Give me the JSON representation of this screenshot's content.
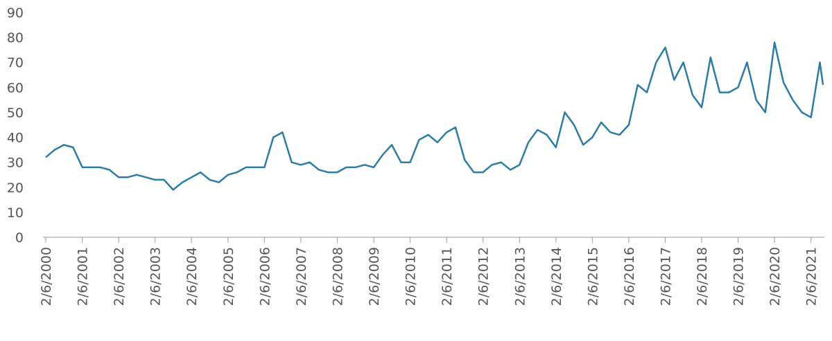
{
  "chart_data": {
    "type": "line",
    "x": [
      "2/6/2000",
      "5/6/2000",
      "8/6/2000",
      "11/6/2000",
      "2/6/2001",
      "5/6/2001",
      "8/6/2001",
      "11/6/2001",
      "2/6/2002",
      "5/6/2002",
      "8/6/2002",
      "11/6/2002",
      "2/6/2003",
      "5/6/2003",
      "8/6/2003",
      "11/6/2003",
      "2/6/2004",
      "5/6/2004",
      "8/6/2004",
      "11/6/2004",
      "2/6/2005",
      "5/6/2005",
      "8/6/2005",
      "11/6/2005",
      "2/6/2006",
      "5/6/2006",
      "8/6/2006",
      "11/6/2006",
      "2/6/2007",
      "5/6/2007",
      "8/6/2007",
      "11/6/2007",
      "2/6/2008",
      "5/6/2008",
      "8/6/2008",
      "11/6/2008",
      "2/6/2009",
      "5/6/2009",
      "8/6/2009",
      "11/6/2009",
      "2/6/2010",
      "5/6/2010",
      "8/6/2010",
      "11/6/2010",
      "2/6/2011",
      "5/6/2011",
      "8/6/2011",
      "11/6/2011",
      "2/6/2012",
      "5/6/2012",
      "8/6/2012",
      "11/6/2012",
      "2/6/2013",
      "5/6/2013",
      "8/6/2013",
      "11/6/2013",
      "2/6/2014",
      "5/6/2014",
      "8/6/2014",
      "11/6/2014",
      "2/6/2015",
      "5/6/2015",
      "8/6/2015",
      "11/6/2015",
      "2/6/2016",
      "5/6/2016",
      "8/6/2016",
      "11/6/2016",
      "2/6/2017",
      "5/6/2017",
      "8/6/2017",
      "11/6/2017",
      "2/6/2018",
      "5/6/2018",
      "8/6/2018",
      "11/6/2018",
      "2/6/2019",
      "5/6/2019",
      "8/6/2019",
      "11/6/2019",
      "2/6/2020",
      "5/6/2020",
      "8/6/2020",
      "11/6/2020",
      "2/6/2021",
      "5/6/2021",
      "6/6/2021"
    ],
    "series": [
      {
        "color": "#2b7ba3",
        "values": [
          32,
          35,
          37,
          36,
          28,
          28,
          28,
          27,
          24,
          24,
          25,
          24,
          23,
          23,
          19,
          22,
          24,
          26,
          23,
          22,
          25,
          26,
          28,
          28,
          28,
          40,
          42,
          30,
          29,
          30,
          27,
          26,
          26,
          28,
          28,
          29,
          28,
          33,
          37,
          30,
          30,
          39,
          41,
          38,
          42,
          44,
          31,
          26,
          26,
          29,
          30,
          27,
          29,
          38,
          43,
          41,
          36,
          50,
          45,
          37,
          40,
          46,
          42,
          41,
          45,
          61,
          58,
          70,
          76,
          63,
          70,
          57,
          52,
          72,
          58,
          58,
          60,
          70,
          55,
          50,
          78,
          62,
          55,
          50,
          48,
          70,
          61
        ]
      }
    ],
    "xlim": [
      "2/6/2000",
      "6/6/2021"
    ],
    "xticks": [
      "2/6/2000",
      "2/6/2001",
      "2/6/2002",
      "2/6/2003",
      "2/6/2004",
      "2/6/2005",
      "2/6/2006",
      "2/6/2007",
      "2/6/2008",
      "2/6/2009",
      "2/6/2010",
      "2/6/2011",
      "2/6/2012",
      "2/6/2013",
      "2/6/2014",
      "2/6/2015",
      "2/6/2016",
      "2/6/2017",
      "2/6/2018",
      "2/6/2019",
      "2/6/2020",
      "2/6/2021"
    ],
    "ylim": [
      0,
      90
    ],
    "yticks": [
      0,
      10,
      20,
      30,
      40,
      50,
      60,
      70,
      80,
      90
    ],
    "grid": false
  }
}
